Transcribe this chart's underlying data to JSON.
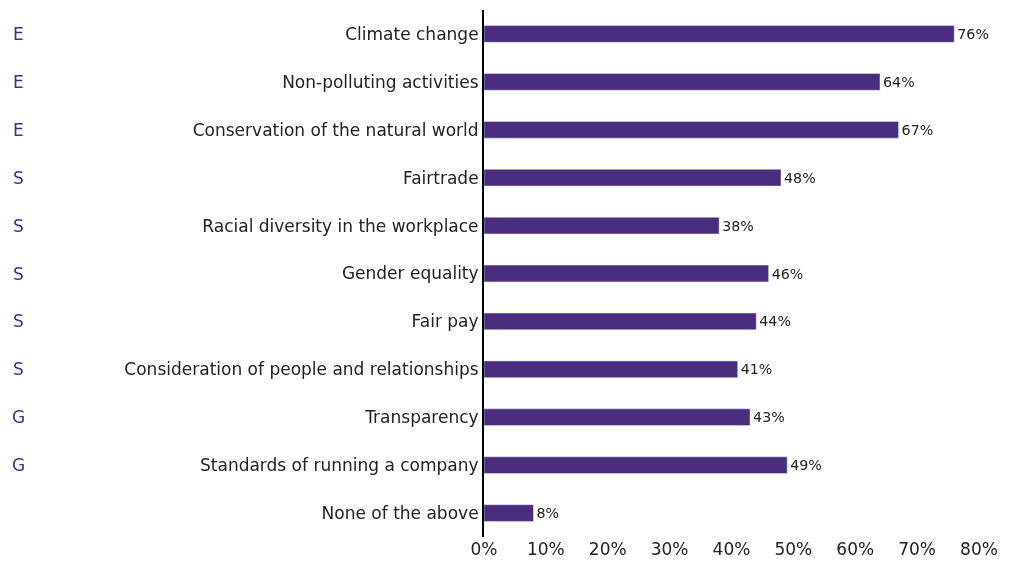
{
  "chart_data": {
    "type": "bar",
    "orientation": "horizontal",
    "categories": [
      "Climate change",
      "Non-polluting activities",
      "Conservation of the natural world",
      "Fairtrade",
      "Racial diversity in the workplace",
      "Gender equality",
      "Fair pay",
      "Consideration of people and relationships",
      "Transparency",
      "Standards of running a company",
      "None of the above"
    ],
    "values": [
      76,
      64,
      67,
      48,
      38,
      46,
      44,
      41,
      43,
      49,
      8
    ],
    "value_labels": [
      "76%",
      "64%",
      "67%",
      "48%",
      "38%",
      "46%",
      "44%",
      "41%",
      "43%",
      "49%",
      "8%"
    ],
    "color": "#4b2d7f",
    "xlim": [
      0,
      80
    ],
    "xticks": [
      {
        "value": 0,
        "label": "0%"
      },
      {
        "value": 10,
        "label": "10%"
      },
      {
        "value": 20,
        "label": "20%"
      },
      {
        "value": 30,
        "label": "30%"
      },
      {
        "value": 40,
        "label": "40%"
      },
      {
        "value": 50,
        "label": "50%"
      },
      {
        "value": 60,
        "label": "60%"
      },
      {
        "value": 70,
        "label": "70%"
      },
      {
        "value": 80,
        "label": "80%"
      }
    ],
    "legend": false,
    "annotations": [
      "E",
      "E",
      "E",
      "S",
      "S",
      "S",
      "S",
      "S",
      "G",
      "G"
    ]
  }
}
